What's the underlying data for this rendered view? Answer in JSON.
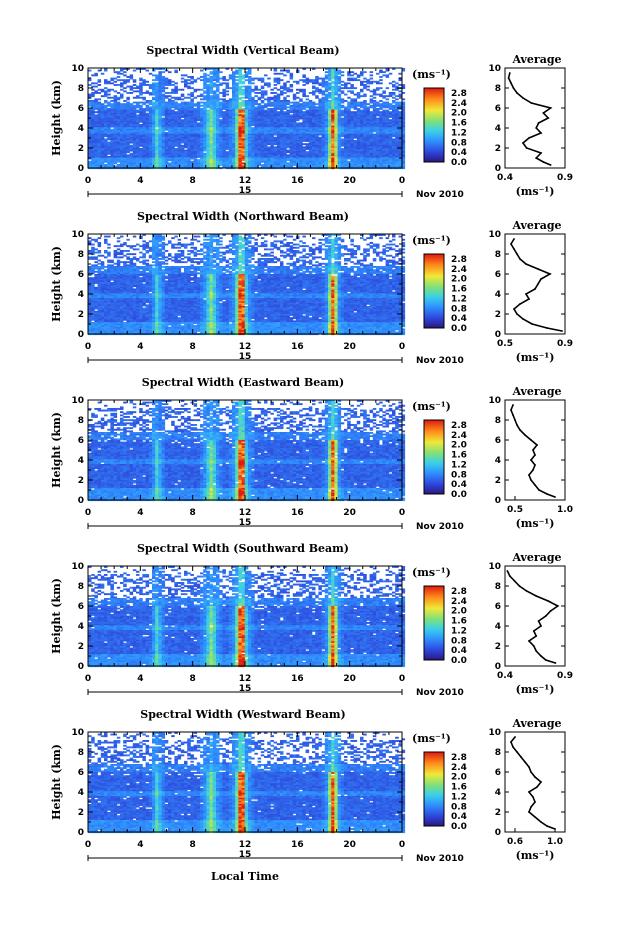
{
  "figure": {
    "xlabel": "Local Time",
    "ylabel": "Height (km)",
    "unit_label": "(ms⁻¹)",
    "date_label": "Nov 2010",
    "day_label": "15",
    "avg_title": "Average",
    "avg_xlabel": "(ms⁻¹)"
  },
  "chart_data": [
    {
      "type": "heatmap",
      "title": "Spectral Width (Vertical Beam)",
      "xlabel": "Local Time",
      "ylabel": "Height (km)",
      "x_ticks": [
        "0",
        "4",
        "8",
        "12",
        "16",
        "20",
        "0"
      ],
      "xlim": [
        0,
        24
      ],
      "y_ticks": [
        "0",
        "2",
        "4",
        "6",
        "8",
        "10"
      ],
      "ylim": [
        0,
        10
      ],
      "colorbar_ticks": [
        "0.0",
        "0.4",
        "0.8",
        "1.2",
        "1.6",
        "2.0",
        "2.4",
        "2.8"
      ],
      "colorbar_range": [
        0,
        3.0
      ],
      "avg_profile": {
        "x_ticks": [
          "0.4",
          "0.9"
        ],
        "xlim": [
          0.4,
          0.9
        ],
        "height": [
          0.3,
          0.6,
          1,
          1.5,
          2,
          2.5,
          3,
          3.5,
          4,
          4.5,
          5,
          5.5,
          6,
          6.5,
          7,
          7.5,
          8,
          8.5,
          9,
          9.5
        ],
        "value": [
          0.78,
          0.72,
          0.66,
          0.7,
          0.58,
          0.55,
          0.6,
          0.7,
          0.66,
          0.68,
          0.76,
          0.72,
          0.78,
          0.62,
          0.55,
          0.5,
          0.47,
          0.45,
          0.43,
          0.44
        ]
      }
    },
    {
      "type": "heatmap",
      "title": "Spectral Width (Northward Beam)",
      "xlabel": "Local Time",
      "ylabel": "Height (km)",
      "x_ticks": [
        "0",
        "4",
        "8",
        "12",
        "16",
        "20",
        "0"
      ],
      "xlim": [
        0,
        24
      ],
      "y_ticks": [
        "0",
        "2",
        "4",
        "6",
        "8",
        "10"
      ],
      "ylim": [
        0,
        10
      ],
      "colorbar_ticks": [
        "0.0",
        "0.4",
        "0.8",
        "1.2",
        "1.6",
        "2.0",
        "2.4",
        "2.8"
      ],
      "colorbar_range": [
        0,
        3.0
      ],
      "avg_profile": {
        "x_ticks": [
          "0.5",
          "0.9"
        ],
        "xlim": [
          0.5,
          0.9
        ],
        "height": [
          0.3,
          0.6,
          1,
          1.5,
          2,
          2.5,
          3,
          3.5,
          4,
          4.5,
          5,
          5.5,
          6,
          6.5,
          7,
          7.5,
          8,
          8.5,
          9,
          9.5
        ],
        "value": [
          0.88,
          0.78,
          0.68,
          0.62,
          0.58,
          0.56,
          0.6,
          0.66,
          0.64,
          0.7,
          0.72,
          0.74,
          0.8,
          0.72,
          0.64,
          0.6,
          0.58,
          0.56,
          0.54,
          0.56
        ]
      }
    },
    {
      "type": "heatmap",
      "title": "Spectral Width (Eastward Beam)",
      "xlabel": "Local Time",
      "ylabel": "Height (km)",
      "x_ticks": [
        "0",
        "4",
        "8",
        "12",
        "16",
        "20",
        "0"
      ],
      "xlim": [
        0,
        24
      ],
      "y_ticks": [
        "0",
        "2",
        "4",
        "6",
        "8",
        "10"
      ],
      "ylim": [
        0,
        10
      ],
      "colorbar_ticks": [
        "0.0",
        "0.4",
        "0.8",
        "1.2",
        "1.6",
        "2.0",
        "2.4",
        "2.8"
      ],
      "colorbar_range": [
        0,
        3.0
      ],
      "avg_profile": {
        "x_ticks": [
          "0.5",
          "1.0"
        ],
        "xlim": [
          0.4,
          1.0
        ],
        "height": [
          0.3,
          0.6,
          1,
          1.5,
          2,
          2.5,
          3,
          3.5,
          4,
          4.5,
          5,
          5.5,
          6,
          6.5,
          7,
          7.5,
          8,
          8.5,
          9,
          9.5
        ],
        "value": [
          0.9,
          0.82,
          0.74,
          0.7,
          0.66,
          0.64,
          0.68,
          0.7,
          0.66,
          0.7,
          0.68,
          0.72,
          0.66,
          0.6,
          0.55,
          0.52,
          0.5,
          0.48,
          0.46,
          0.48
        ]
      }
    },
    {
      "type": "heatmap",
      "title": "Spectral Width (Southward Beam)",
      "xlabel": "Local Time",
      "ylabel": "Height (km)",
      "x_ticks": [
        "0",
        "4",
        "8",
        "12",
        "16",
        "20",
        "0"
      ],
      "xlim": [
        0,
        24
      ],
      "y_ticks": [
        "0",
        "2",
        "4",
        "6",
        "8",
        "10"
      ],
      "ylim": [
        0,
        10
      ],
      "colorbar_ticks": [
        "0.0",
        "0.4",
        "0.8",
        "1.2",
        "1.6",
        "2.0",
        "2.4",
        "2.8"
      ],
      "colorbar_range": [
        0,
        3.0
      ],
      "avg_profile": {
        "x_ticks": [
          "0.4",
          "0.9"
        ],
        "xlim": [
          0.4,
          0.9
        ],
        "height": [
          0.3,
          0.6,
          1,
          1.5,
          2,
          2.5,
          3,
          3.5,
          4,
          4.5,
          5,
          5.5,
          6,
          6.5,
          7,
          7.5,
          8,
          8.5,
          9,
          9.5
        ],
        "value": [
          0.82,
          0.74,
          0.7,
          0.66,
          0.64,
          0.6,
          0.66,
          0.64,
          0.7,
          0.68,
          0.74,
          0.78,
          0.84,
          0.76,
          0.66,
          0.58,
          0.52,
          0.48,
          0.44,
          0.42
        ]
      }
    },
    {
      "type": "heatmap",
      "title": "Spectral Width (Westward Beam)",
      "xlabel": "Local Time",
      "ylabel": "Height (km)",
      "x_ticks": [
        "0",
        "4",
        "8",
        "12",
        "16",
        "20",
        "0"
      ],
      "xlim": [
        0,
        24
      ],
      "y_ticks": [
        "0",
        "2",
        "4",
        "6",
        "8",
        "10"
      ],
      "ylim": [
        0,
        10
      ],
      "colorbar_ticks": [
        "0.0",
        "0.4",
        "0.8",
        "1.2",
        "1.6",
        "2.0",
        "2.4",
        "2.8"
      ],
      "colorbar_range": [
        0,
        3.0
      ],
      "avg_profile": {
        "x_ticks": [
          "0.6",
          "1.0"
        ],
        "xlim": [
          0.5,
          1.1
        ],
        "height": [
          0.3,
          0.6,
          1,
          1.5,
          2,
          2.5,
          3,
          3.5,
          4,
          4.5,
          5,
          5.5,
          6,
          6.5,
          7,
          7.5,
          8,
          8.5,
          9,
          9.5
        ],
        "value": [
          1.0,
          0.92,
          0.86,
          0.8,
          0.74,
          0.76,
          0.8,
          0.78,
          0.74,
          0.82,
          0.86,
          0.8,
          0.76,
          0.74,
          0.7,
          0.66,
          0.62,
          0.58,
          0.56,
          0.6
        ]
      }
    }
  ]
}
